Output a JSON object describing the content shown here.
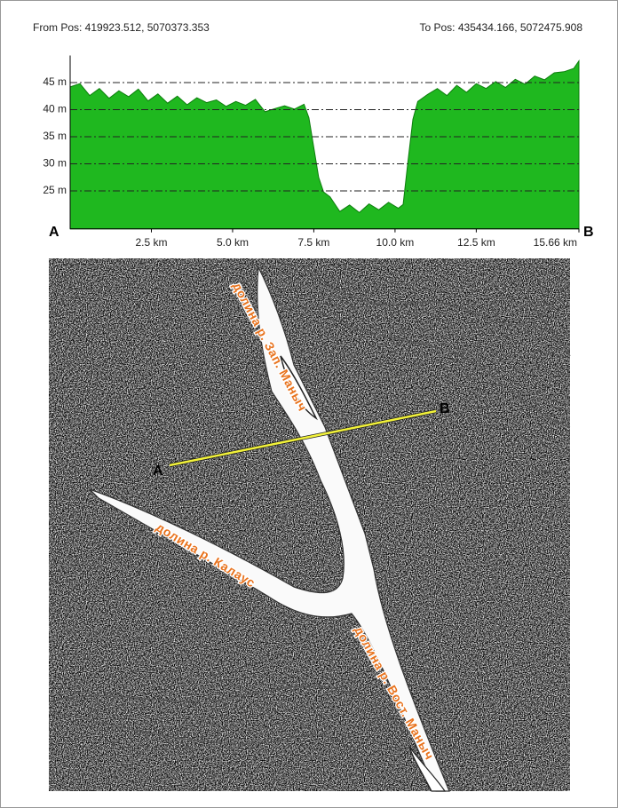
{
  "chart_data": {
    "type": "area",
    "from_pos": "From Pos: 419923.512, 5070373.353",
    "to_pos": "To Pos: 435434.166, 5072475.908",
    "start_label": "A",
    "end_label": "B",
    "color": "#1fb81f",
    "x": [
      0,
      0.3,
      0.6,
      0.9,
      1.2,
      1.5,
      1.8,
      2.1,
      2.4,
      2.7,
      3.0,
      3.3,
      3.6,
      3.9,
      4.2,
      4.5,
      4.8,
      5.1,
      5.4,
      5.7,
      6.0,
      6.3,
      6.6,
      6.9,
      7.2,
      7.35,
      7.5,
      7.65,
      7.8,
      8.0,
      8.3,
      8.6,
      8.9,
      9.2,
      9.5,
      9.8,
      10.1,
      10.25,
      10.4,
      10.55,
      10.7,
      11.0,
      11.3,
      11.6,
      11.9,
      12.2,
      12.5,
      12.8,
      13.1,
      13.4,
      13.7,
      14.0,
      14.3,
      14.6,
      14.9,
      15.2,
      15.5,
      15.66
    ],
    "values": [
      44.2,
      44.8,
      42.6,
      43.9,
      42.1,
      43.5,
      42.4,
      43.8,
      41.6,
      42.9,
      41.2,
      42.5,
      40.9,
      42.2,
      41.3,
      41.8,
      40.6,
      41.5,
      40.8,
      41.9,
      39.6,
      40.2,
      40.7,
      40.1,
      41.0,
      38.5,
      33.0,
      27.5,
      24.8,
      23.9,
      21.2,
      22.4,
      21.0,
      22.6,
      21.5,
      22.9,
      21.8,
      22.5,
      30.5,
      38.2,
      41.5,
      42.8,
      43.9,
      42.6,
      44.5,
      43.2,
      44.8,
      43.9,
      45.2,
      44.1,
      45.6,
      44.7,
      46.2,
      45.5,
      46.8,
      47.0,
      47.6,
      49.0
    ],
    "xlim": [
      0,
      15.66
    ],
    "xticks": [
      {
        "value": 2.5,
        "label": "2.5 km"
      },
      {
        "value": 5,
        "label": "5.0 km"
      },
      {
        "value": 7.5,
        "label": "7.5 km"
      },
      {
        "value": 10,
        "label": "10.0 km"
      },
      {
        "value": 12.5,
        "label": "12.5 km"
      },
      {
        "value": 15.66,
        "label": "15.66 km"
      }
    ],
    "ylim": [
      18,
      50
    ],
    "yticks": [
      {
        "value": 25,
        "label": "25 m"
      },
      {
        "value": 30,
        "label": "30 m"
      },
      {
        "value": 35,
        "label": "35 m"
      },
      {
        "value": 40,
        "label": "40 m"
      },
      {
        "value": 45,
        "label": "45 m"
      }
    ],
    "grid": true
  },
  "map": {
    "points": [
      {
        "label": "A"
      },
      {
        "label": "B"
      }
    ],
    "labels": [
      "долина р. Зап. Маныч",
      "долина р. Калаус",
      "долина р. Вост. Маныч"
    ]
  }
}
